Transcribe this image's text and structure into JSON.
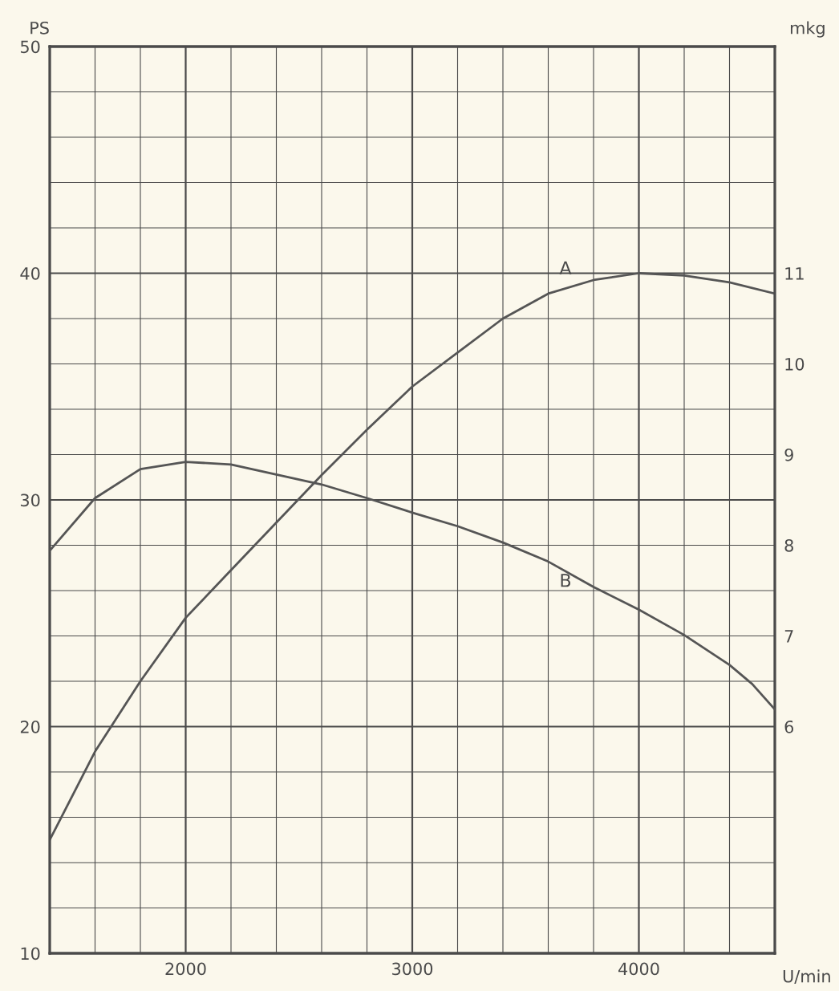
{
  "chart_data": {
    "type": "line",
    "xlabel": "U/min",
    "ylabel": "PS",
    "y2label": "mkg",
    "xlim": [
      1400,
      4600
    ],
    "xticks": [
      2000,
      3000,
      4000
    ],
    "ylim": [
      10,
      50
    ],
    "yticks": [
      10,
      20,
      30,
      40,
      50
    ],
    "y2lim": [
      3.5,
      13.5
    ],
    "y2ticks": [
      6,
      7,
      8,
      9,
      10,
      11
    ],
    "grid": true,
    "marker": "none",
    "line_style": "solid",
    "series": [
      {
        "name": "A",
        "color": "#555555",
        "x": [
          1400,
          1600,
          1800,
          2000,
          2200,
          2400,
          2600,
          2800,
          3000,
          3200,
          3400,
          3600,
          3800,
          4000,
          4200,
          4400,
          4600
        ],
        "values": [
          15.0,
          18.9,
          22.0,
          24.8,
          26.9,
          29.0,
          31.1,
          33.1,
          35.0,
          36.5,
          38.0,
          39.1,
          39.7,
          40.0,
          39.9,
          39.6,
          39.1
        ]
      },
      {
        "name": "B",
        "color": "#555555",
        "axis": "y2",
        "x": [
          1400,
          1600,
          1800,
          2000,
          2200,
          2400,
          2600,
          2800,
          3000,
          3200,
          3400,
          3600,
          3800,
          4000,
          4200,
          4400,
          4500,
          4600
        ],
        "values": [
          7.94,
          8.52,
          8.84,
          8.92,
          8.89,
          8.78,
          8.67,
          8.52,
          8.36,
          8.21,
          8.03,
          7.82,
          7.54,
          7.29,
          7.01,
          6.68,
          6.47,
          6.19
        ]
      }
    ]
  }
}
